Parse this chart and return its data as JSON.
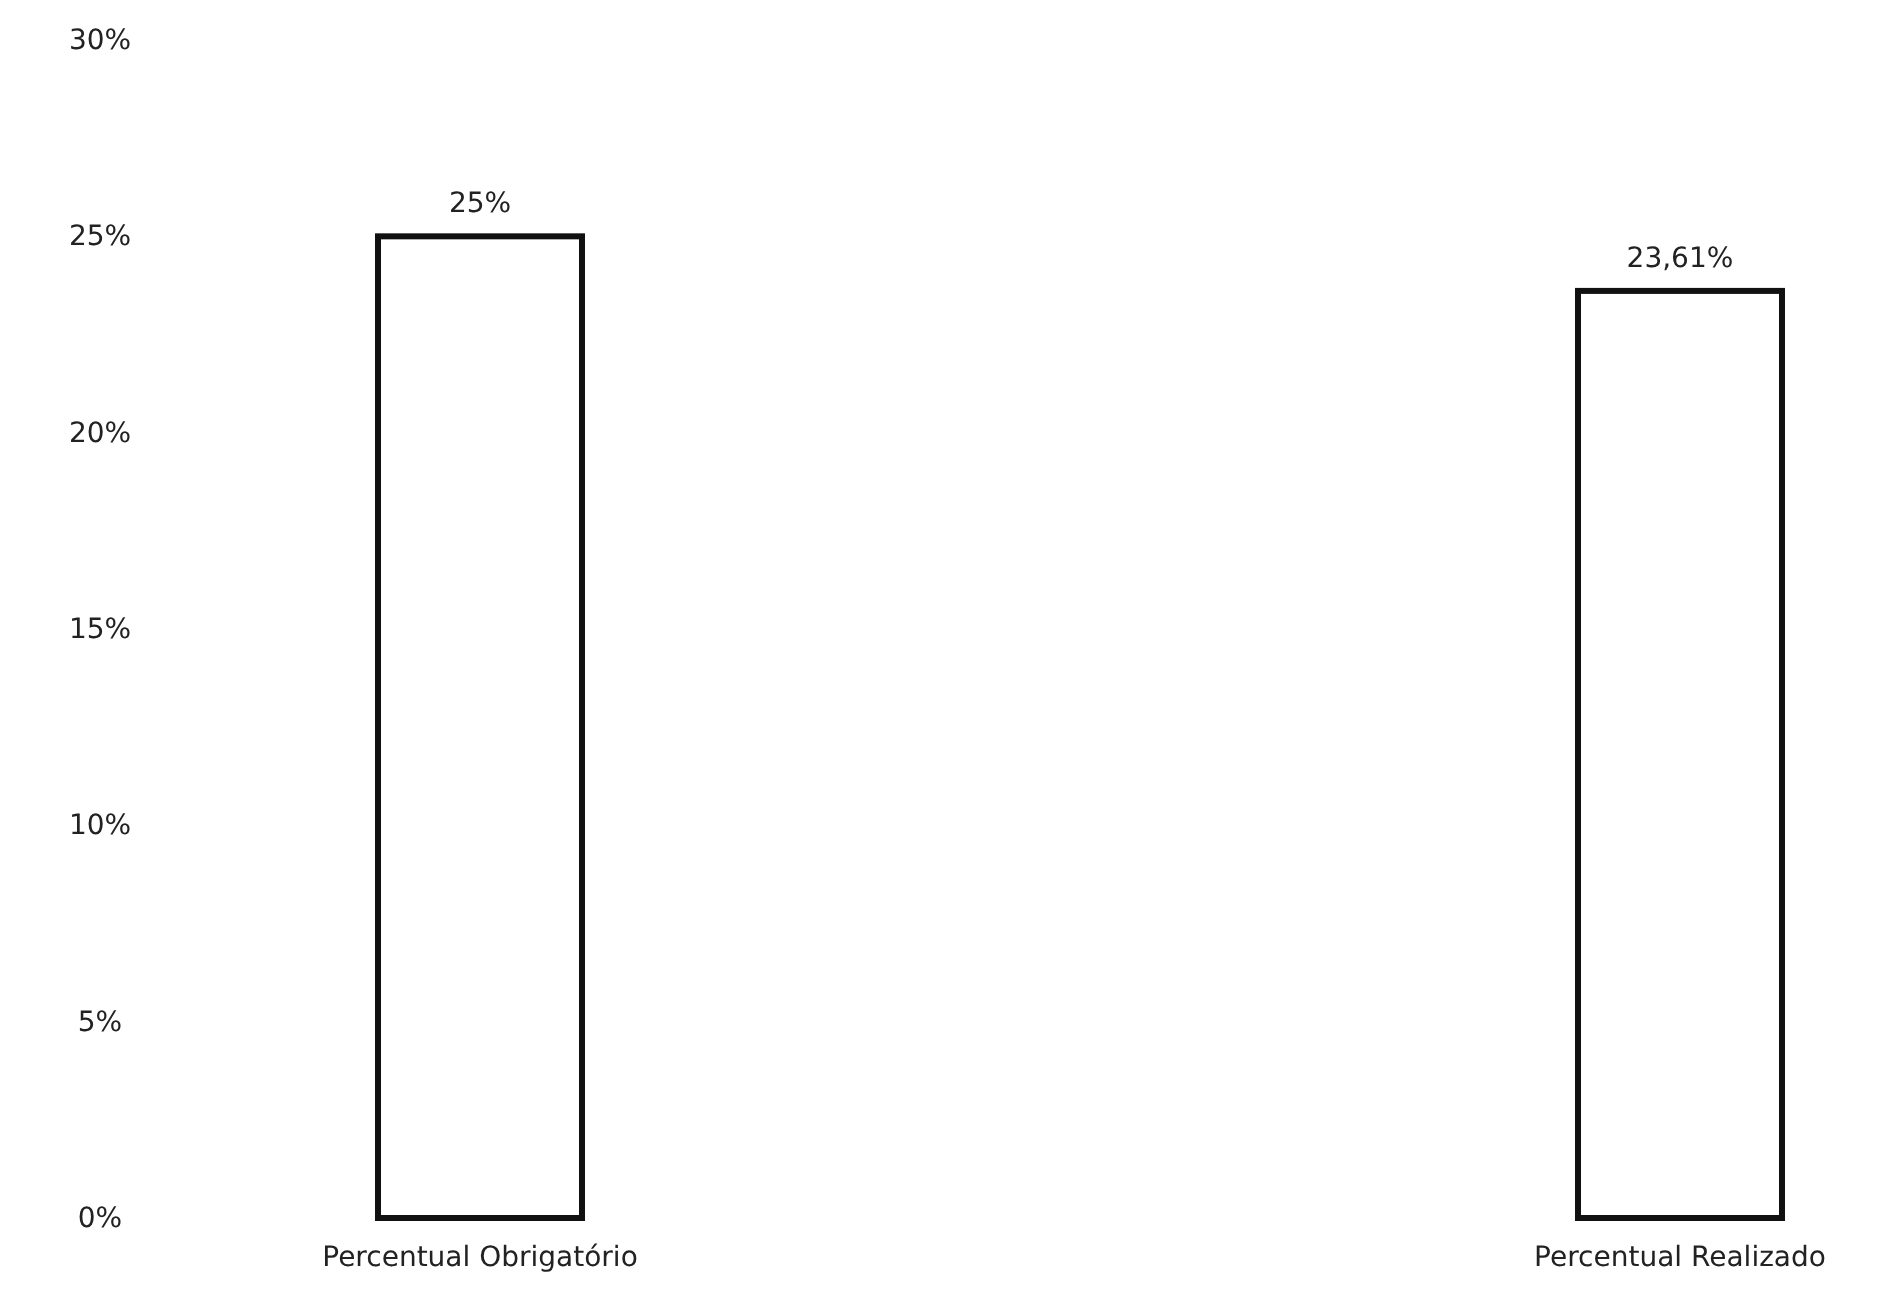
{
  "chart_data": {
    "type": "bar",
    "categories": [
      "Percentual Obrigatório",
      "Percentual Realizado"
    ],
    "values": [
      25,
      23.61
    ],
    "value_labels": [
      "25%",
      "23,61%"
    ],
    "color": "#ffffff",
    "ylim": [
      0,
      30
    ],
    "yticks": [
      {
        "value": 0,
        "label": "0%"
      },
      {
        "value": 5,
        "label": "5%"
      },
      {
        "value": 10,
        "label": "10%"
      },
      {
        "value": 15,
        "label": "15%"
      },
      {
        "value": 20,
        "label": "20%"
      },
      {
        "value": 25,
        "label": "25%"
      },
      {
        "value": 30,
        "label": "30%"
      }
    ],
    "grid": false
  }
}
